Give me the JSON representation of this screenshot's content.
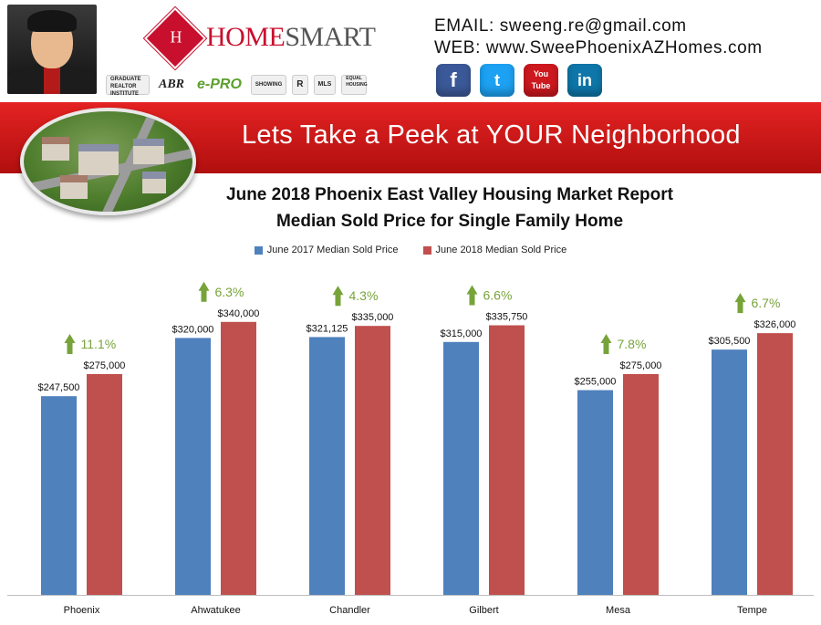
{
  "header": {
    "brand_prefix": "HOME",
    "brand_suffix": "SMART",
    "brand_mark": "H",
    "email_label": "EMAIL:",
    "email": "sweeng.re@gmail.com",
    "web_label": "WEB:",
    "web": "www.SweePhoenixAZHomes.com",
    "badges": [
      "GRADUATE REALTOR INSTITUTE",
      "ABR",
      "e-PRO",
      "SHOWING",
      "R",
      "MLS",
      "EQUAL HOUSING"
    ],
    "social": [
      {
        "name": "facebook-icon",
        "glyph": "f",
        "color": "#3b5998"
      },
      {
        "name": "twitter-icon",
        "glyph": "t",
        "color": "#1da1f2"
      },
      {
        "name": "youtube-icon",
        "glyph": "You Tube",
        "color": "#cc181e"
      },
      {
        "name": "linkedin-icon",
        "glyph": "in",
        "color": "#0e76a8"
      }
    ]
  },
  "banner": {
    "title": "Lets Take a Peek at YOUR Neighborhood"
  },
  "chart_data": {
    "type": "bar",
    "title": "June 2018 Phoenix East Valley Housing Market Report",
    "subtitle": "Median Sold Price for Single Family Home",
    "categories": [
      "Phoenix",
      "Ahwatukee",
      "Chandler",
      "Gilbert",
      "Mesa",
      "Tempe"
    ],
    "series": [
      {
        "name": "June 2017 Median Sold Price",
        "color": "#4f81bd",
        "values": [
          247500,
          320000,
          321125,
          315000,
          255000,
          305500
        ],
        "labels": [
          "$247,500",
          "$320,000",
          "$321,125",
          "$315,000",
          "$255,000",
          "$305,500"
        ]
      },
      {
        "name": "June 2018 Median Sold Price",
        "color": "#c0504d",
        "values": [
          275000,
          340000,
          335000,
          335750,
          275000,
          326000
        ],
        "labels": [
          "$275,000",
          "$340,000",
          "$335,000",
          "$335,750",
          "$275,000",
          "$326,000"
        ]
      }
    ],
    "annotations": [
      "11.1%",
      "6.3%",
      "4.3%",
      "6.6%",
      "7.8%",
      "6.7%"
    ],
    "annotation_color": "#77a33a",
    "ylim": [
      0,
      400000
    ],
    "grid": false,
    "legend": "top"
  }
}
